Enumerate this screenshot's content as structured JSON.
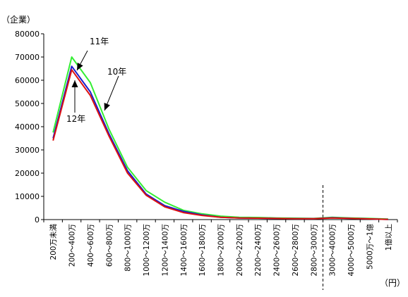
{
  "chart_data": {
    "type": "line",
    "ylabel": "（企業）",
    "xlabel": "（円）",
    "ylim": [
      0,
      80000
    ],
    "yticks": [
      0,
      10000,
      20000,
      30000,
      40000,
      50000,
      60000,
      70000,
      80000
    ],
    "categories": [
      "200万未満",
      "200～400万",
      "400～600万",
      "600～800万",
      "800～1000万",
      "1000～1200万",
      "1200～1400万",
      "1400～1600万",
      "1600～1800万",
      "1800～2000万",
      "2000～2200万",
      "2200～2400万",
      "2400～2600万",
      "2600～2800万",
      "2800～3000万",
      "3000～4000万",
      "4000～5000万",
      "5000万～1億",
      "1億以上"
    ],
    "break_after_category": "2800～3000万",
    "series": [
      {
        "name": "10年",
        "color": "#33ee33",
        "values": [
          37500,
          70000,
          59000,
          39000,
          22500,
          12500,
          7500,
          4000,
          2500,
          1500,
          1000,
          900,
          700,
          600,
          500,
          1000,
          700,
          500,
          200
        ]
      },
      {
        "name": "11年",
        "color": "#1a1acc",
        "values": [
          35000,
          66000,
          55000,
          37000,
          21000,
          11000,
          6000,
          3500,
          2000,
          1000,
          700,
          600,
          500,
          400,
          400,
          800,
          500,
          300,
          100
        ]
      },
      {
        "name": "12年",
        "color": "#dd1111",
        "values": [
          34000,
          64500,
          53500,
          36000,
          20000,
          10500,
          5500,
          3000,
          1800,
          1000,
          700,
          600,
          500,
          400,
          400,
          700,
          500,
          300,
          100
        ]
      }
    ],
    "annotations": [
      {
        "text": "11年",
        "series": "11年"
      },
      {
        "text": "10年",
        "series": "10年"
      },
      {
        "text": "12年",
        "series": "12年"
      }
    ],
    "grid": false
  }
}
